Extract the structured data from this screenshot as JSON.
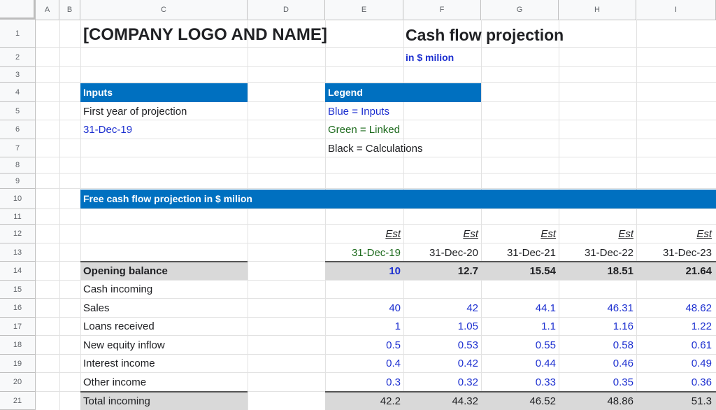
{
  "columns": [
    "A",
    "B",
    "C",
    "D",
    "E",
    "F",
    "G",
    "H",
    "I"
  ],
  "rows": [
    "1",
    "2",
    "3",
    "4",
    "5",
    "6",
    "7",
    "8",
    "9",
    "10",
    "11",
    "12",
    "13",
    "14",
    "15",
    "16",
    "17",
    "18",
    "19",
    "20",
    "21"
  ],
  "title": {
    "company": "[COMPANY LOGO AND NAME]",
    "report": "Cash flow projection",
    "units": "in $ milion"
  },
  "inputs": {
    "header": "Inputs",
    "label": "First year of projection",
    "value": "31-Dec-19"
  },
  "legend": {
    "header": "Legend",
    "blue": "Blue = Inputs",
    "green": "Green = Linked",
    "black": "Black = Calculations"
  },
  "section_header": "Free cash flow projection in $ milion",
  "table": {
    "est_labels": [
      "Est",
      "Est",
      "Est",
      "Est",
      "Est"
    ],
    "dates": [
      "31-Dec-19",
      "31-Dec-20",
      "31-Dec-21",
      "31-Dec-22",
      "31-Dec-23"
    ],
    "opening_balance": {
      "label": "Opening balance",
      "values": [
        "10",
        "12.7",
        "15.54",
        "18.51",
        "21.64"
      ]
    },
    "cash_incoming_label": "Cash incoming",
    "lines": [
      {
        "label": "Sales",
        "values": [
          "40",
          "42",
          "44.1",
          "46.31",
          "48.62"
        ]
      },
      {
        "label": "Loans received",
        "values": [
          "1",
          "1.05",
          "1.1",
          "1.16",
          "1.22"
        ]
      },
      {
        "label": "New equity inflow",
        "values": [
          "0.5",
          "0.53",
          "0.55",
          "0.58",
          "0.61"
        ]
      },
      {
        "label": "Interest income",
        "values": [
          "0.4",
          "0.42",
          "0.44",
          "0.46",
          "0.49"
        ]
      },
      {
        "label": "Other income",
        "values": [
          "0.3",
          "0.32",
          "0.33",
          "0.35",
          "0.36"
        ]
      }
    ],
    "total_incoming": {
      "label": "Total incoming",
      "values": [
        "42.2",
        "44.32",
        "46.52",
        "48.86",
        "51.3"
      ]
    }
  },
  "colors": {
    "header_blue": "#0070c0",
    "input_blue": "#1c2fd0",
    "linked_green": "#1e6b1e",
    "total_gray": "#d9d9d9"
  }
}
